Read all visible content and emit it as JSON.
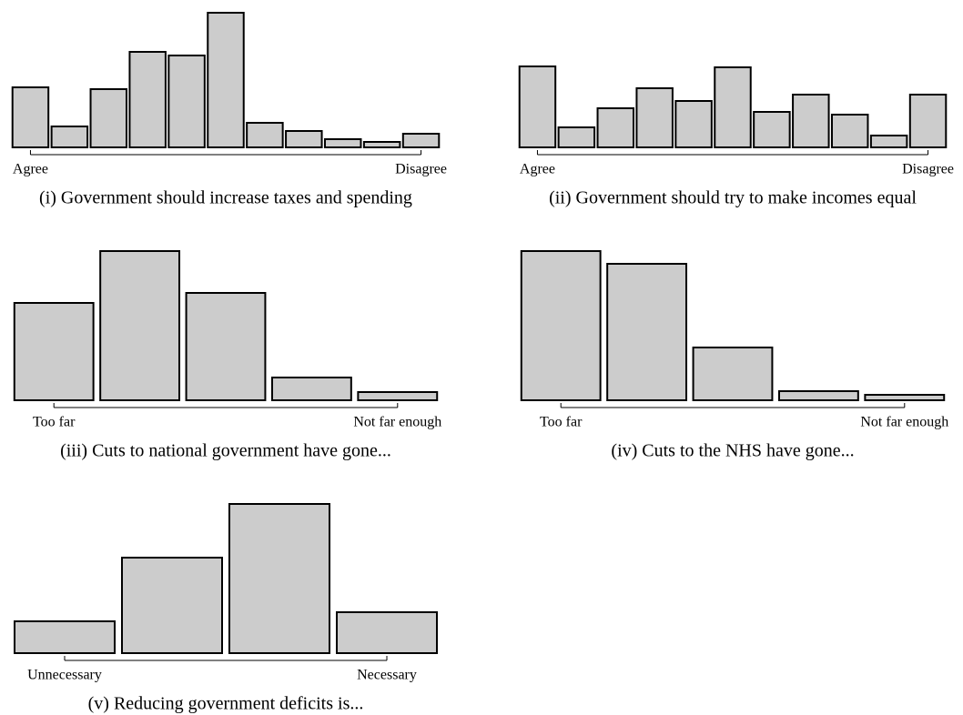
{
  "chart_data": [
    {
      "type": "bar",
      "title": "(i) Government should increase taxes and spending",
      "categories": [
        "Agree",
        null,
        null,
        null,
        null,
        null,
        null,
        null,
        null,
        null,
        "Disagree"
      ],
      "values": [
        66,
        23,
        64,
        105,
        101,
        148,
        27,
        18,
        9,
        6,
        15
      ],
      "color": "#cccccc"
    },
    {
      "type": "bar",
      "title": "(ii) Government should try to make incomes equal",
      "categories": [
        "Agree",
        null,
        null,
        null,
        null,
        null,
        null,
        null,
        null,
        null,
        "Disagree"
      ],
      "values": [
        89,
        22,
        43,
        65,
        51,
        88,
        39,
        58,
        36,
        13,
        58
      ],
      "color": "#cccccc"
    },
    {
      "type": "bar",
      "title": "(iii) Cuts to national government have gone...",
      "categories": [
        "Too far",
        null,
        null,
        null,
        "Not far enough"
      ],
      "values": [
        107,
        164,
        118,
        25,
        9
      ],
      "color": "#cccccc"
    },
    {
      "type": "bar",
      "title": "(iv) Cuts to the NHS have gone...",
      "categories": [
        "Too far",
        null,
        null,
        null,
        "Not far enough"
      ],
      "values": [
        164,
        150,
        58,
        10,
        6
      ],
      "color": "#cccccc"
    },
    {
      "type": "bar",
      "title": "(v) Reducing government deficits is...",
      "categories": [
        "Unnecessary",
        null,
        null,
        "Necessary"
      ],
      "values": [
        35,
        105,
        164,
        45
      ],
      "color": "#cccccc"
    }
  ]
}
